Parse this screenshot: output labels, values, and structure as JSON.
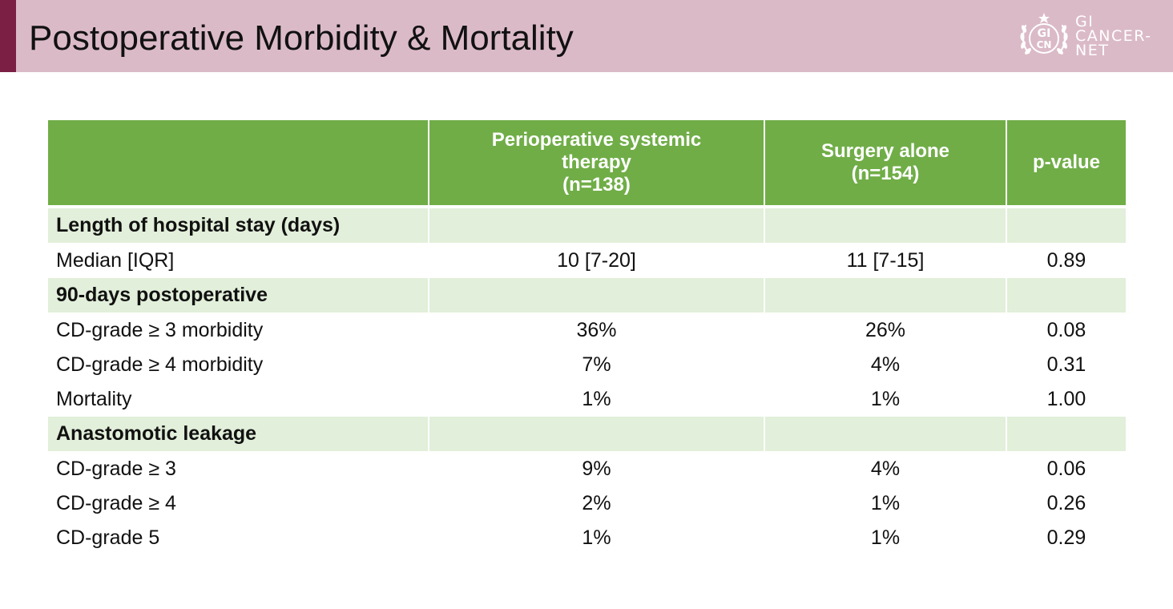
{
  "slide": {
    "title": "Postoperative Morbidity & Mortality"
  },
  "logo": {
    "emblem_top": "GI",
    "emblem_bottom": "CN",
    "line1": "GI",
    "line2": "CANCER-",
    "line3": "NET"
  },
  "table": {
    "columns": [
      "",
      "Perioperative systemic therapy (n=138)",
      "Surgery alone (n=154)",
      "p-value"
    ],
    "header": {
      "col1_line1": "Perioperative systemic",
      "col1_line2": "therapy",
      "col1_line3": "(n=138)",
      "col2_line1": "Surgery alone",
      "col2_line2": "(n=154)",
      "col3": "p-value"
    },
    "rows": [
      {
        "type": "section",
        "label": "Length of hospital stay (days)"
      },
      {
        "type": "data",
        "label": "Median [IQR]",
        "periop": "10 [7-20]",
        "surgery": "11 [7-15]",
        "p": "0.89"
      },
      {
        "type": "section",
        "label": "90-days postoperative"
      },
      {
        "type": "data",
        "label": "CD-grade ≥ 3 morbidity",
        "periop": "36%",
        "surgery": "26%",
        "p": "0.08"
      },
      {
        "type": "data",
        "label": "CD-grade ≥ 4 morbidity",
        "periop": "7%",
        "surgery": "4%",
        "p": "0.31"
      },
      {
        "type": "data",
        "label": "Mortality",
        "periop": "1%",
        "surgery": "1%",
        "p": "1.00"
      },
      {
        "type": "section",
        "label": "Anastomotic leakage"
      },
      {
        "type": "data",
        "label": "CD-grade ≥ 3",
        "periop": "9%",
        "surgery": "4%",
        "p": "0.06"
      },
      {
        "type": "data",
        "label": "CD-grade ≥ 4",
        "periop": "2%",
        "surgery": "1%",
        "p": "0.26"
      },
      {
        "type": "data",
        "label": "CD-grade 5",
        "periop": "1%",
        "surgery": "1%",
        "p": "0.29"
      }
    ]
  },
  "colors": {
    "header_band": "#dbbac8",
    "header_accent": "#7b1f45",
    "table_header": "#70ad47",
    "section_row": "#e2efda"
  }
}
